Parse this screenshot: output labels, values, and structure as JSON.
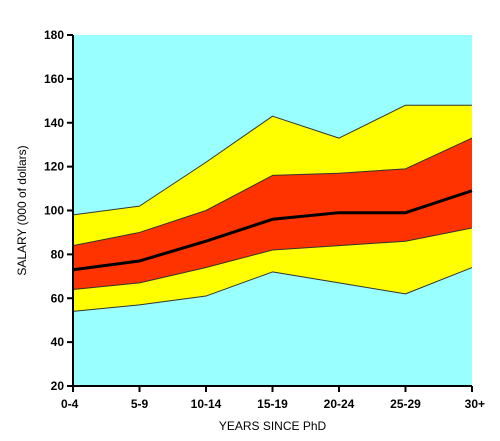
{
  "chart_data": {
    "type": "area",
    "title": "",
    "xlabel": "YEARS SINCE PhD",
    "ylabel": "SALARY (000 of dollars)",
    "categories": [
      "0-4",
      "5-9",
      "10-14",
      "15-19",
      "20-24",
      "25-29",
      "30+"
    ],
    "ylim": [
      20,
      180
    ],
    "yticks": [
      20,
      40,
      60,
      80,
      100,
      120,
      140,
      160,
      180
    ],
    "grid": false,
    "legend": "none",
    "series": [
      {
        "values": [
          54,
          57,
          61,
          72,
          67,
          62,
          74
        ]
      },
      {
        "values": [
          64,
          67,
          74,
          82,
          84,
          86,
          92
        ]
      },
      {
        "values": [
          73,
          77,
          86,
          96,
          99,
          99,
          109
        ]
      },
      {
        "values": [
          84,
          90,
          100,
          116,
          117,
          119,
          133
        ]
      },
      {
        "values": [
          98,
          102,
          122,
          143,
          133,
          148,
          148
        ]
      }
    ],
    "colors": {
      "background": "#99ffff",
      "outer_band": "#ffff00",
      "inner_band": "#ff3300",
      "median_line": "#000000",
      "band_edge": "#333333"
    }
  }
}
